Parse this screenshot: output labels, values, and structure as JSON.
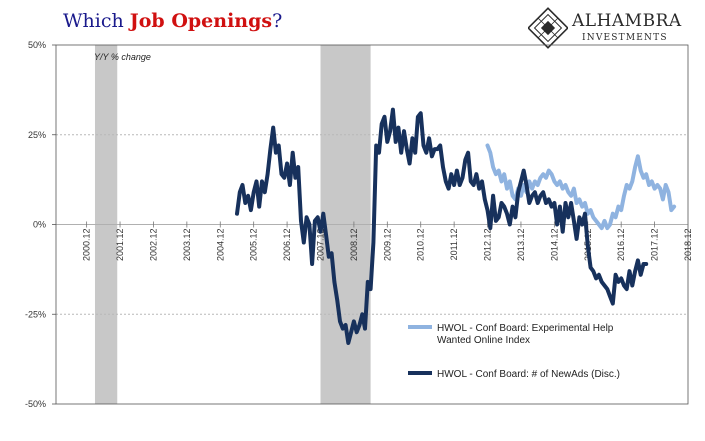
{
  "header": {
    "title_prefix": "Which ",
    "title_highlight": "Job Openings",
    "title_suffix": "?"
  },
  "logo": {
    "name": "ALHAMBRA",
    "subtitle": "INVESTMENTS"
  },
  "chart_data": {
    "type": "line",
    "ylabel": "Y/Y % change",
    "ylim": [
      -50,
      50
    ],
    "yticks": [
      "50%",
      "25%",
      "0%",
      "-25%",
      "-50%"
    ],
    "xlim": [
      "2000-01",
      "2018-12"
    ],
    "xticks": [
      "2000.12",
      "2001.12",
      "2002.12",
      "2003.12",
      "2004.12",
      "2005.12",
      "2006.12",
      "2007.12",
      "2008.12",
      "2009.12",
      "2010.12",
      "2011.12",
      "2012.12",
      "2013.12",
      "2014.12",
      "2015.12",
      "2016.12",
      "2017.12",
      "2018.12"
    ],
    "recessions": [
      {
        "start": "2001-03",
        "end": "2001-11"
      },
      {
        "start": "2007-12",
        "end": "2009-06"
      }
    ],
    "grid": "horizontal-dashed",
    "legend_position": "bottom-right",
    "series": [
      {
        "name": "HWOL - Conf Board: Experimental Help Wanted Online Index",
        "color": "#8fb3e0",
        "points": [
          [
            "2012-12",
            22
          ],
          [
            "2013-01",
            20
          ],
          [
            "2013-02",
            16
          ],
          [
            "2013-03",
            14
          ],
          [
            "2013-04",
            15
          ],
          [
            "2013-05",
            12
          ],
          [
            "2013-06",
            14
          ],
          [
            "2013-07",
            10
          ],
          [
            "2013-08",
            12
          ],
          [
            "2013-09",
            8
          ],
          [
            "2013-10",
            7
          ],
          [
            "2013-11",
            10
          ],
          [
            "2013-12",
            8
          ],
          [
            "2014-01",
            11
          ],
          [
            "2014-02",
            9
          ],
          [
            "2014-03",
            12
          ],
          [
            "2014-04",
            10
          ],
          [
            "2014-05",
            12
          ],
          [
            "2014-06",
            11
          ],
          [
            "2014-07",
            13
          ],
          [
            "2014-08",
            14
          ],
          [
            "2014-09",
            13
          ],
          [
            "2014-10",
            15
          ],
          [
            "2014-11",
            14
          ],
          [
            "2014-12",
            12
          ],
          [
            "2015-01",
            11
          ],
          [
            "2015-02",
            12
          ],
          [
            "2015-03",
            10
          ],
          [
            "2015-04",
            11
          ],
          [
            "2015-05",
            9
          ],
          [
            "2015-06",
            8
          ],
          [
            "2015-07",
            10
          ],
          [
            "2015-08",
            6
          ],
          [
            "2015-09",
            7
          ],
          [
            "2015-10",
            5
          ],
          [
            "2015-11",
            6
          ],
          [
            "2015-12",
            3
          ],
          [
            "2016-01",
            4
          ],
          [
            "2016-02",
            2
          ],
          [
            "2016-03",
            1
          ],
          [
            "2016-04",
            0
          ],
          [
            "2016-05",
            -1
          ],
          [
            "2016-06",
            1
          ],
          [
            "2016-07",
            -1
          ],
          [
            "2016-08",
            0
          ],
          [
            "2016-09",
            3
          ],
          [
            "2016-10",
            2
          ],
          [
            "2016-11",
            5
          ],
          [
            "2016-12",
            4
          ],
          [
            "2017-01",
            8
          ],
          [
            "2017-02",
            11
          ],
          [
            "2017-03",
            10
          ],
          [
            "2017-04",
            12
          ],
          [
            "2017-05",
            16
          ],
          [
            "2017-06",
            19
          ],
          [
            "2017-07",
            15
          ],
          [
            "2017-08",
            13
          ],
          [
            "2017-09",
            14
          ],
          [
            "2017-10",
            11
          ],
          [
            "2017-11",
            12
          ],
          [
            "2017-12",
            10
          ],
          [
            "2018-01",
            11
          ],
          [
            "2018-02",
            10
          ],
          [
            "2018-03",
            7
          ],
          [
            "2018-04",
            11
          ],
          [
            "2018-05",
            9
          ],
          [
            "2018-06",
            4
          ],
          [
            "2018-07",
            5
          ]
        ]
      },
      {
        "name": "HWOL - Conf Board: # of NewAds (Disc.)",
        "color": "#17315c",
        "points": [
          [
            "2005-06",
            3
          ],
          [
            "2005-07",
            9
          ],
          [
            "2005-08",
            11
          ],
          [
            "2005-09",
            6
          ],
          [
            "2005-10",
            8
          ],
          [
            "2005-11",
            4
          ],
          [
            "2005-12",
            9
          ],
          [
            "2006-01",
            12
          ],
          [
            "2006-02",
            5
          ],
          [
            "2006-03",
            12
          ],
          [
            "2006-04",
            9
          ],
          [
            "2006-05",
            14
          ],
          [
            "2006-06",
            21
          ],
          [
            "2006-07",
            27
          ],
          [
            "2006-08",
            20
          ],
          [
            "2006-09",
            22
          ],
          [
            "2006-10",
            14
          ],
          [
            "2006-11",
            13
          ],
          [
            "2006-12",
            17
          ],
          [
            "2007-01",
            11
          ],
          [
            "2007-02",
            20
          ],
          [
            "2007-03",
            13
          ],
          [
            "2007-04",
            16
          ],
          [
            "2007-05",
            1
          ],
          [
            "2007-06",
            -5
          ],
          [
            "2007-07",
            2
          ],
          [
            "2007-08",
            0
          ],
          [
            "2007-09",
            -11
          ],
          [
            "2007-10",
            1
          ],
          [
            "2007-11",
            2
          ],
          [
            "2007-12",
            -2
          ],
          [
            "2008-01",
            3
          ],
          [
            "2008-02",
            -3
          ],
          [
            "2008-03",
            -9
          ],
          [
            "2008-04",
            -8
          ],
          [
            "2008-05",
            -16
          ],
          [
            "2008-06",
            -21
          ],
          [
            "2008-07",
            -27
          ],
          [
            "2008-08",
            -29
          ],
          [
            "2008-09",
            -28
          ],
          [
            "2008-10",
            -33
          ],
          [
            "2008-11",
            -30
          ],
          [
            "2008-12",
            -27
          ],
          [
            "2009-01",
            -30
          ],
          [
            "2009-02",
            -28
          ],
          [
            "2009-03",
            -25
          ],
          [
            "2009-04",
            -29
          ],
          [
            "2009-05",
            -16
          ],
          [
            "2009-06",
            -18
          ],
          [
            "2009-07",
            -5
          ],
          [
            "2009-08",
            22
          ],
          [
            "2009-09",
            20
          ],
          [
            "2009-10",
            28
          ],
          [
            "2009-11",
            30
          ],
          [
            "2009-12",
            23
          ],
          [
            "2010-01",
            26
          ],
          [
            "2010-02",
            32
          ],
          [
            "2010-03",
            23
          ],
          [
            "2010-04",
            27
          ],
          [
            "2010-05",
            20
          ],
          [
            "2010-06",
            26
          ],
          [
            "2010-07",
            21
          ],
          [
            "2010-08",
            17
          ],
          [
            "2010-09",
            24
          ],
          [
            "2010-10",
            20
          ],
          [
            "2010-11",
            30
          ],
          [
            "2010-12",
            31
          ],
          [
            "2011-01",
            22
          ],
          [
            "2011-02",
            20
          ],
          [
            "2011-03",
            24
          ],
          [
            "2011-04",
            19
          ],
          [
            "2011-05",
            21
          ],
          [
            "2011-06",
            21
          ],
          [
            "2011-07",
            22
          ],
          [
            "2011-08",
            16
          ],
          [
            "2011-09",
            12
          ],
          [
            "2011-10",
            10
          ],
          [
            "2011-11",
            14
          ],
          [
            "2011-12",
            11
          ],
          [
            "2012-01",
            15
          ],
          [
            "2012-02",
            11
          ],
          [
            "2012-03",
            13
          ],
          [
            "2012-04",
            18
          ],
          [
            "2012-05",
            20
          ],
          [
            "2012-06",
            12
          ],
          [
            "2012-07",
            11
          ],
          [
            "2012-08",
            14
          ],
          [
            "2012-09",
            10
          ],
          [
            "2012-10",
            12
          ],
          [
            "2012-11",
            7
          ],
          [
            "2012-12",
            4
          ],
          [
            "2013-01",
            -1
          ],
          [
            "2013-02",
            8
          ],
          [
            "2013-03",
            1
          ],
          [
            "2013-04",
            2
          ],
          [
            "2013-05",
            6
          ],
          [
            "2013-06",
            5
          ],
          [
            "2013-07",
            3
          ],
          [
            "2013-08",
            0
          ],
          [
            "2013-09",
            5
          ],
          [
            "2013-10",
            2
          ],
          [
            "2013-11",
            9
          ],
          [
            "2013-12",
            12
          ],
          [
            "2014-01",
            15
          ],
          [
            "2014-02",
            11
          ],
          [
            "2014-03",
            6
          ],
          [
            "2014-04",
            8
          ],
          [
            "2014-05",
            9
          ],
          [
            "2014-06",
            6
          ],
          [
            "2014-07",
            8
          ],
          [
            "2014-08",
            9
          ],
          [
            "2014-09",
            6
          ],
          [
            "2014-10",
            7
          ],
          [
            "2014-11",
            5
          ],
          [
            "2014-12",
            6
          ],
          [
            "2015-01",
            0
          ],
          [
            "2015-02",
            5
          ],
          [
            "2015-03",
            -2
          ],
          [
            "2015-04",
            6
          ],
          [
            "2015-05",
            2
          ],
          [
            "2015-06",
            6
          ],
          [
            "2015-07",
            1
          ],
          [
            "2015-08",
            -4
          ],
          [
            "2015-09",
            2
          ],
          [
            "2015-10",
            0
          ],
          [
            "2015-11",
            3
          ],
          [
            "2015-12",
            -6
          ],
          [
            "2016-01",
            -12
          ],
          [
            "2016-02",
            -13
          ],
          [
            "2016-03",
            -15
          ],
          [
            "2016-04",
            -14
          ],
          [
            "2016-05",
            -16
          ],
          [
            "2016-06",
            -17
          ],
          [
            "2016-07",
            -18
          ],
          [
            "2016-08",
            -20
          ],
          [
            "2016-09",
            -22
          ],
          [
            "2016-10",
            -14
          ],
          [
            "2016-11",
            -16
          ],
          [
            "2016-12",
            -15
          ],
          [
            "2017-01",
            -17
          ],
          [
            "2017-02",
            -18
          ],
          [
            "2017-03",
            -13
          ],
          [
            "2017-04",
            -17
          ],
          [
            "2017-05",
            -13
          ],
          [
            "2017-06",
            -10
          ],
          [
            "2017-07",
            -14
          ],
          [
            "2017-08",
            -11
          ],
          [
            "2017-09",
            -11
          ]
        ]
      }
    ]
  }
}
